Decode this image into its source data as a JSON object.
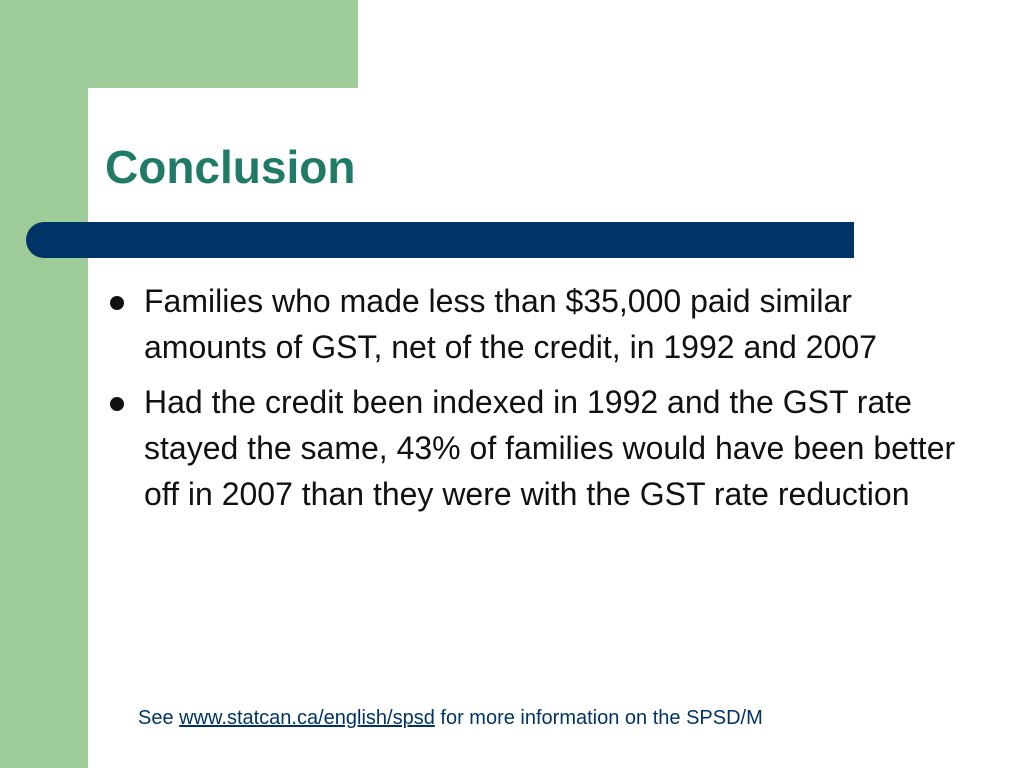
{
  "slide": {
    "title": "Conclusion",
    "bullets": [
      "Families who made less than $35,000 paid similar amounts of GST, net of the credit, in 1992 and 2007",
      "Had the credit been indexed in 1992 and the GST rate stayed the same, 43% of families would have been better off in 2007 than they were with the GST rate reduction"
    ],
    "footer": {
      "prefix": "See ",
      "link_text": "www.statcan.ca/english/spsd",
      "suffix": " for more information on the SPSD/M"
    },
    "colors": {
      "accent_green": "#9dcc99",
      "title_color": "#1f7a66",
      "bar_color": "#003466",
      "text_color": "#111111"
    }
  }
}
